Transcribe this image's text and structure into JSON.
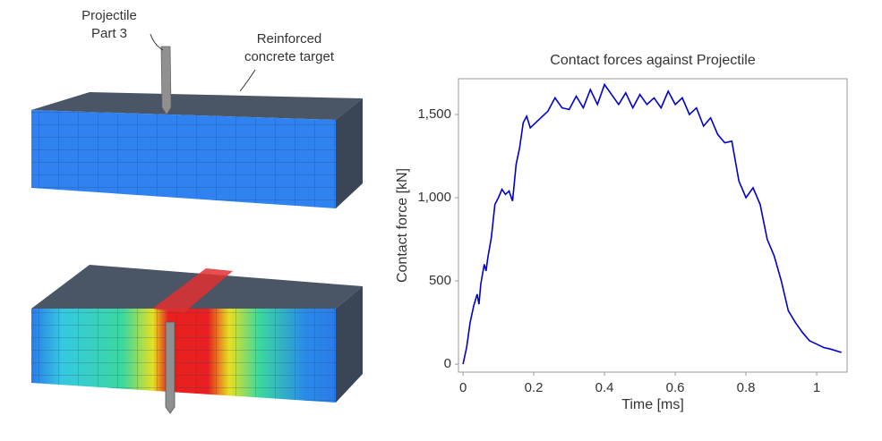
{
  "chart_data": {
    "type": "line",
    "title": "Contact forces against Projectile",
    "xlabel": "Time [ms]",
    "ylabel": "Contact force [kN]",
    "color": "#0000cc",
    "x": [
      0,
      0.01,
      0.02,
      0.03,
      0.04,
      0.045,
      0.05,
      0.06,
      0.065,
      0.07,
      0.08,
      0.09,
      0.1,
      0.11,
      0.12,
      0.13,
      0.14,
      0.15,
      0.16,
      0.17,
      0.18,
      0.19,
      0.2,
      0.22,
      0.24,
      0.26,
      0.28,
      0.3,
      0.32,
      0.34,
      0.36,
      0.38,
      0.4,
      0.42,
      0.44,
      0.46,
      0.48,
      0.5,
      0.52,
      0.54,
      0.56,
      0.58,
      0.6,
      0.62,
      0.64,
      0.66,
      0.68,
      0.7,
      0.72,
      0.74,
      0.76,
      0.78,
      0.8,
      0.82,
      0.84,
      0.86,
      0.88,
      0.9,
      0.92,
      0.94,
      0.96,
      0.98,
      1.0,
      1.02,
      1.04,
      1.07
    ],
    "values": [
      0,
      100,
      250,
      350,
      420,
      360,
      480,
      600,
      560,
      640,
      760,
      960,
      1000,
      1050,
      1020,
      1040,
      980,
      1200,
      1300,
      1450,
      1490,
      1420,
      1440,
      1480,
      1520,
      1600,
      1540,
      1530,
      1610,
      1540,
      1650,
      1560,
      1680,
      1620,
      1560,
      1630,
      1540,
      1620,
      1560,
      1600,
      1540,
      1640,
      1560,
      1600,
      1500,
      1540,
      1430,
      1480,
      1380,
      1330,
      1340,
      1100,
      1000,
      1060,
      960,
      750,
      650,
      500,
      320,
      250,
      190,
      140,
      120,
      100,
      90,
      70
    ],
    "xlim": [
      -0.013,
      1.086
    ],
    "ylim": [
      -48,
      1715
    ],
    "xticks": [
      0,
      0.2,
      0.4,
      0.6,
      0.8,
      1
    ],
    "yticks": [
      0,
      500,
      {
        "value": 1000,
        "label": "1,000"
      },
      {
        "value": 1500,
        "label": "1,500"
      }
    ],
    "annotations": [
      {
        "lines": [
          "Projectile",
          "Part 3"
        ]
      },
      {
        "lines": [
          "Reinforced",
          "concrete target"
        ]
      }
    ]
  }
}
